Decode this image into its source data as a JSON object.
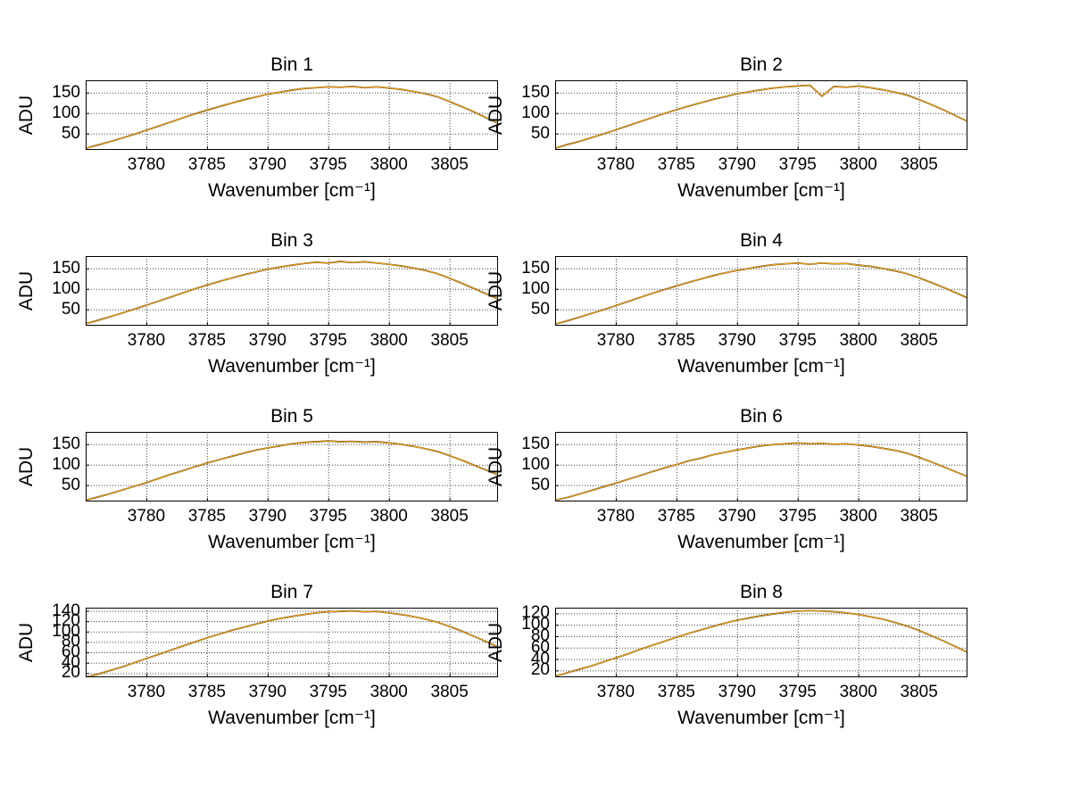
{
  "figure": {
    "background": "#ffffff",
    "axis_color": "#000000",
    "grid_color": "#000000",
    "line_color": "#ffa500",
    "line_shadow_color": "#222222"
  },
  "chart_data": [
    {
      "type": "line",
      "title": "Bin 1",
      "xlabel": "Wavenumber [cm⁻¹]",
      "ylabel": "ADU",
      "x_start": 3775,
      "x_step": 1,
      "xlim": [
        3775,
        3809
      ],
      "ylim": [
        10,
        180
      ],
      "xticks": [
        3780,
        3785,
        3790,
        3795,
        3800,
        3805
      ],
      "yticks": [
        50,
        100,
        150
      ],
      "values": [
        14,
        22,
        30,
        39,
        48,
        58,
        68,
        78,
        88,
        98,
        107,
        116,
        124,
        132,
        139,
        146,
        151,
        156,
        160,
        162,
        164,
        163,
        165,
        162,
        164,
        161,
        158,
        153,
        147,
        140,
        128,
        116,
        103,
        89,
        75
      ]
    },
    {
      "type": "line",
      "title": "Bin 2",
      "xlabel": "Wavenumber [cm⁻¹]",
      "ylabel": "ADU",
      "x_start": 3775,
      "x_step": 1,
      "xlim": [
        3775,
        3809
      ],
      "ylim": [
        10,
        180
      ],
      "xticks": [
        3780,
        3785,
        3790,
        3795,
        3800,
        3805
      ],
      "yticks": [
        50,
        100,
        150
      ],
      "values": [
        14,
        23,
        31,
        40,
        49,
        59,
        69,
        79,
        89,
        99,
        108,
        117,
        125,
        133,
        140,
        147,
        152,
        157,
        161,
        164,
        166,
        168,
        141,
        165,
        163,
        166,
        162,
        157,
        151,
        144,
        133,
        121,
        108,
        94,
        80
      ]
    },
    {
      "type": "line",
      "title": "Bin 3",
      "xlabel": "Wavenumber [cm⁻¹]",
      "ylabel": "ADU",
      "x_start": 3775,
      "x_step": 1,
      "xlim": [
        3775,
        3809
      ],
      "ylim": [
        10,
        180
      ],
      "xticks": [
        3780,
        3785,
        3790,
        3795,
        3800,
        3805
      ],
      "yticks": [
        50,
        100,
        150
      ],
      "values": [
        15,
        23,
        32,
        41,
        50,
        60,
        70,
        80,
        90,
        100,
        109,
        118,
        126,
        134,
        141,
        148,
        153,
        158,
        162,
        165,
        163,
        167,
        164,
        166,
        163,
        160,
        156,
        151,
        145,
        137,
        126,
        114,
        101,
        88,
        75
      ]
    },
    {
      "type": "line",
      "title": "Bin 4",
      "xlabel": "Wavenumber [cm⁻¹]",
      "ylabel": "ADU",
      "x_start": 3775,
      "x_step": 1,
      "xlim": [
        3775,
        3809
      ],
      "ylim": [
        10,
        180
      ],
      "xticks": [
        3780,
        3785,
        3790,
        3795,
        3800,
        3805
      ],
      "yticks": [
        50,
        100,
        150
      ],
      "values": [
        14,
        22,
        31,
        40,
        49,
        59,
        69,
        79,
        89,
        98,
        107,
        116,
        124,
        132,
        139,
        145,
        150,
        155,
        159,
        161,
        163,
        160,
        163,
        161,
        162,
        158,
        155,
        150,
        144,
        137,
        127,
        116,
        104,
        91,
        78
      ]
    },
    {
      "type": "line",
      "title": "Bin 5",
      "xlabel": "Wavenumber [cm⁻¹]",
      "ylabel": "ADU",
      "x_start": 3775,
      "x_step": 1,
      "xlim": [
        3775,
        3809
      ],
      "ylim": [
        10,
        180
      ],
      "xticks": [
        3780,
        3785,
        3790,
        3795,
        3800,
        3805
      ],
      "yticks": [
        50,
        100,
        150
      ],
      "values": [
        13,
        21,
        29,
        38,
        47,
        56,
        66,
        76,
        85,
        95,
        104,
        112,
        120,
        128,
        135,
        141,
        146,
        151,
        154,
        156,
        158,
        156,
        157,
        155,
        156,
        153,
        150,
        145,
        139,
        132,
        122,
        111,
        99,
        87,
        75
      ]
    },
    {
      "type": "line",
      "title": "Bin 6",
      "xlabel": "Wavenumber [cm⁻¹]",
      "ylabel": "ADU",
      "x_start": 3775,
      "x_step": 1,
      "xlim": [
        3775,
        3809
      ],
      "ylim": [
        10,
        180
      ],
      "xticks": [
        3780,
        3785,
        3790,
        3795,
        3800,
        3805
      ],
      "yticks": [
        50,
        100,
        150
      ],
      "values": [
        13,
        20,
        28,
        37,
        46,
        55,
        64,
        73,
        83,
        92,
        100,
        109,
        116,
        124,
        130,
        136,
        141,
        146,
        149,
        151,
        153,
        151,
        152,
        150,
        151,
        148,
        145,
        140,
        135,
        128,
        118,
        107,
        95,
        83,
        71
      ]
    },
    {
      "type": "line",
      "title": "Bin 7",
      "xlabel": "Wavenumber [cm⁻¹]",
      "ylabel": "ADU",
      "x_start": 3775,
      "x_step": 1,
      "xlim": [
        3775,
        3809
      ],
      "ylim": [
        12,
        146
      ],
      "xticks": [
        3780,
        3785,
        3790,
        3795,
        3800,
        3805
      ],
      "yticks": [
        20,
        40,
        60,
        80,
        100,
        120,
        140
      ],
      "values": [
        12,
        18,
        25,
        32,
        40,
        48,
        56,
        64,
        72,
        80,
        88,
        95,
        102,
        108,
        114,
        120,
        125,
        129,
        133,
        136,
        138,
        139,
        140,
        138,
        139,
        136,
        133,
        129,
        124,
        118,
        110,
        101,
        91,
        81,
        70
      ]
    },
    {
      "type": "line",
      "title": "Bin 8",
      "xlabel": "Wavenumber [cm⁻¹]",
      "ylabel": "ADU",
      "x_start": 3775,
      "x_step": 1,
      "xlim": [
        3775,
        3809
      ],
      "ylim": [
        8,
        130
      ],
      "xticks": [
        3780,
        3785,
        3790,
        3795,
        3800,
        3805
      ],
      "yticks": [
        20,
        40,
        60,
        80,
        100,
        120
      ],
      "values": [
        10,
        16,
        22,
        28,
        35,
        42,
        49,
        57,
        64,
        71,
        78,
        85,
        91,
        97,
        103,
        108,
        112,
        116,
        119,
        122,
        124,
        125,
        124,
        123,
        121,
        118,
        114,
        110,
        104,
        98,
        90,
        81,
        72,
        62,
        52
      ]
    }
  ]
}
